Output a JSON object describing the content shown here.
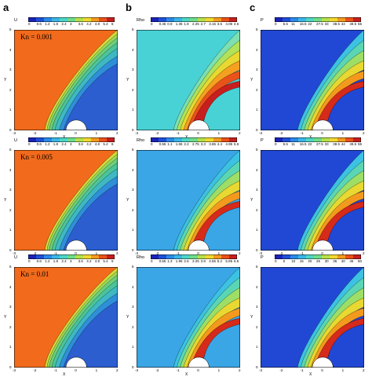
{
  "figure": {
    "columns": [
      {
        "letter": "a",
        "variable": "U",
        "cbar_ticks": [
          "0",
          "0.6",
          "1.2",
          "1.8",
          "2.4",
          "3",
          "3.6",
          "4.2",
          "4.8",
          "5.4",
          "6"
        ],
        "annotations": [
          "Kn = 0.001",
          "Kn = 0.005",
          "Kn = 0.01"
        ]
      },
      {
        "letter": "b",
        "variable": "Rho",
        "cbar_ticks_rows": [
          [
            "0",
            "0.45",
            "0.9",
            "1.35",
            "1.8",
            "2.25",
            "2.7",
            "3.15",
            "3.6",
            "4.05",
            "4.5"
          ],
          [
            "0",
            "0.55",
            "1.1",
            "1.65",
            "2.2",
            "2.75",
            "3.3",
            "3.85",
            "4.4",
            "4.95",
            "5.5"
          ],
          [
            "0",
            "0.65",
            "1.3",
            "1.95",
            "2.6",
            "3.25",
            "3.9",
            "4.55",
            "5.2",
            "5.85",
            "6.5"
          ]
        ]
      },
      {
        "letter": "c",
        "variable": "P",
        "cbar_ticks_rows": [
          [
            "0",
            "5.5",
            "11",
            "16.5",
            "22",
            "27.5",
            "33",
            "38.5",
            "44",
            "49.5",
            "55"
          ],
          [
            "0",
            "5.5",
            "11",
            "16.5",
            "22",
            "27.5",
            "33",
            "38.5",
            "44",
            "49.5",
            "55"
          ],
          [
            "0",
            "5",
            "10",
            "15",
            "20",
            "25",
            "30",
            "35",
            "40",
            "45",
            "50"
          ]
        ]
      }
    ],
    "x_ticks": [
      "-3",
      "-2",
      "-1",
      "0",
      "1",
      "2"
    ],
    "y_ticks": [
      "0",
      "1",
      "2",
      "3",
      "4",
      "5"
    ],
    "x_label": "X",
    "y_label": "Y",
    "colors": {
      "jet": [
        "#1a22b8",
        "#1f4fd8",
        "#2a8ae8",
        "#3ab6e6",
        "#4cd6c6",
        "#6fdc8a",
        "#b6e04a",
        "#f0d830",
        "#f39a1e",
        "#e9521a",
        "#c81e1e"
      ]
    }
  }
}
